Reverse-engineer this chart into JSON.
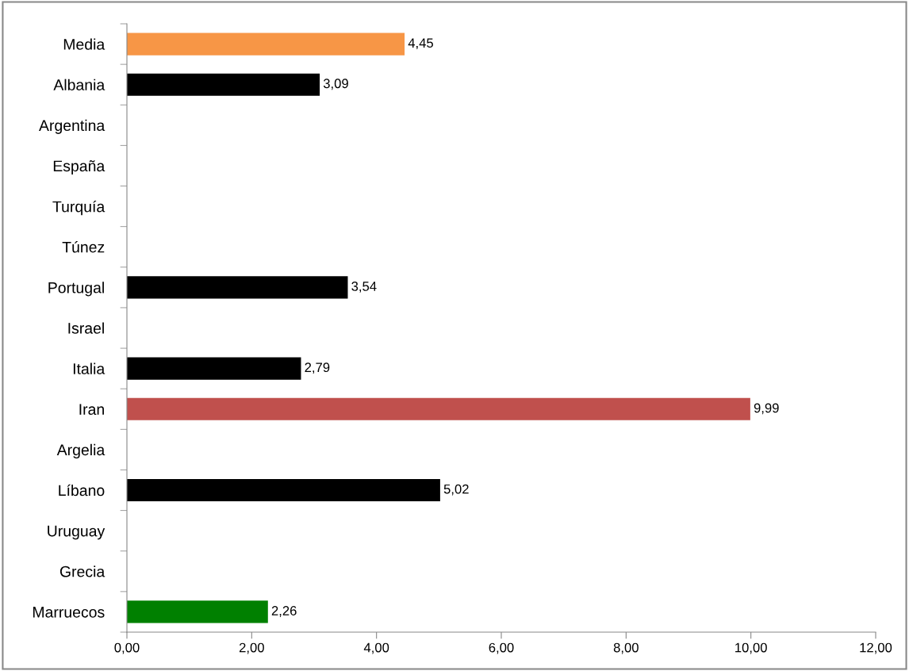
{
  "chart_data": {
    "type": "bar",
    "orientation": "horizontal",
    "categories": [
      "Media",
      "Albania",
      "Argentina",
      "España",
      "Turquía",
      "Túnez",
      "Portugal",
      "Israel",
      "Italia",
      "Iran",
      "Argelia",
      "Líbano",
      "Uruguay",
      "Grecia",
      "Marruecos"
    ],
    "values": [
      4.45,
      3.09,
      null,
      null,
      null,
      null,
      3.54,
      null,
      2.79,
      9.99,
      null,
      5.02,
      null,
      null,
      2.26
    ],
    "value_labels": [
      "4,45",
      "3,09",
      null,
      null,
      null,
      null,
      "3,54",
      null,
      "2,79",
      "9,99",
      null,
      "5,02",
      null,
      null,
      "2,26"
    ],
    "colors": [
      "#f79646",
      "#000000",
      null,
      null,
      null,
      null,
      "#000000",
      null,
      "#000000",
      "#c0504d",
      null,
      "#000000",
      null,
      null,
      "#008000"
    ],
    "xlim": [
      0,
      12
    ],
    "xticks": [
      {
        "value": 0,
        "label": "0,00"
      },
      {
        "value": 2,
        "label": "2,00"
      },
      {
        "value": 4,
        "label": "4,00"
      },
      {
        "value": 6,
        "label": "6,00"
      },
      {
        "value": 8,
        "label": "8,00"
      },
      {
        "value": 10,
        "label": "10,00"
      },
      {
        "value": 12,
        "label": "12,00"
      }
    ],
    "grid": false,
    "legend": false
  }
}
